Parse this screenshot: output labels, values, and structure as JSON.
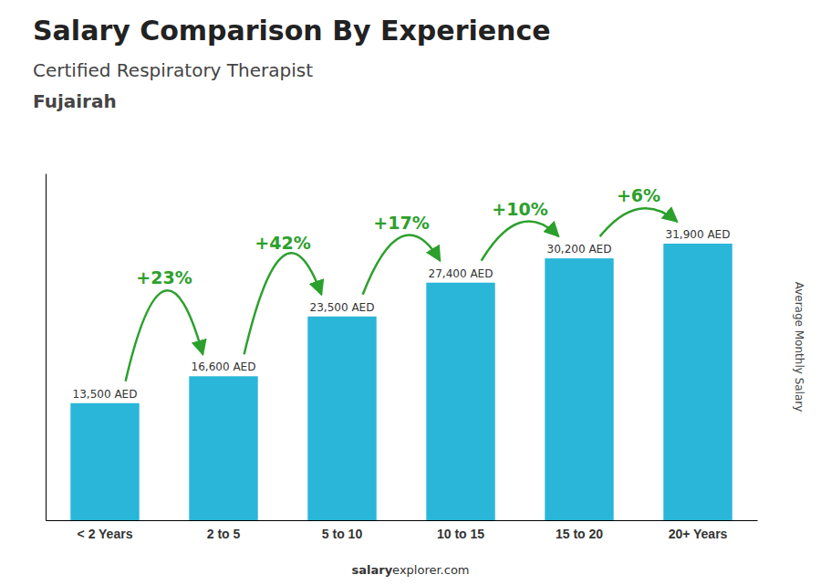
{
  "chart_data": {
    "type": "bar",
    "title": "Salary Comparison By Experience",
    "subtitle": "Certified Respiratory Therapist",
    "annotations": [
      "Fujairah",
      "salary",
      "explorer.com"
    ],
    "ylabel": "Average Monthly Salary",
    "categories": [
      "< 2 Years",
      "2 to 5",
      "5 to 10",
      "10 to 15",
      "15 to 20",
      "20+ Years"
    ],
    "values": [
      13500,
      16600,
      23500,
      27400,
      30200,
      31900
    ],
    "value_labels": [
      "13,500 AED",
      "16,600 AED",
      "23,500 AED",
      "27,400 AED",
      "30,200 AED",
      "31,900 AED"
    ],
    "data_labels": true,
    "changes": [
      23,
      42,
      17,
      10,
      6
    ],
    "change_labels": [
      "+23%",
      "+42%",
      "+17%",
      "+10%",
      "+6%"
    ],
    "color": "#29b6d8",
    "ylim": [
      0,
      40000
    ],
    "yticks": [],
    "grid": false,
    "tick_labels": "x"
  }
}
